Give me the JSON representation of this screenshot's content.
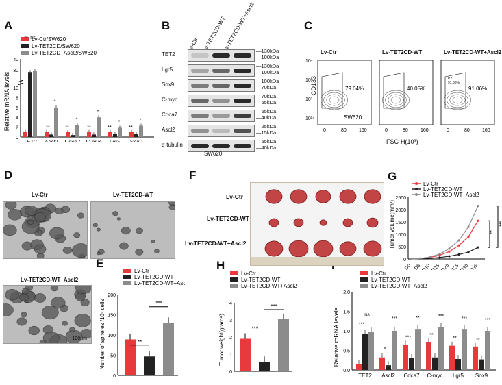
{
  "figure": {
    "panel_labels": [
      "A",
      "B",
      "C",
      "D",
      "E",
      "F",
      "G",
      "H",
      "I"
    ],
    "colors": {
      "ctr": "#e8393d",
      "wt": "#222222",
      "asc": "#8c8c8c"
    }
  },
  "panelA": {
    "legend": [
      "Lv-Ctr/SW620",
      "Lv-TET2CD/SW620",
      "Lv-TET2CD+Ascl2/SW620"
    ],
    "ylabel": "Relative mRNA levels"
  },
  "panelB": {
    "lanes": [
      "Lv-Ctr",
      "Lv-TET2CD-WT",
      "Lv-TET2CD-WT+Ascl2"
    ],
    "proteins": [
      "TET2",
      "Lgr5",
      "Sox9",
      "C-myc",
      "Cdca7",
      "Ascl2",
      "α-tubulin"
    ],
    "kda_left_top": [
      "130kDa",
      "100kDa",
      "100kDa",
      "70kDa",
      "55kDa",
      "55kDa",
      "25kDa",
      "55kDa"
    ],
    "kda_right": [
      [
        "130kDa",
        "100kDa"
      ],
      [
        "130kDa",
        "100kDa"
      ],
      [
        "100kDa",
        "70kDa"
      ],
      [
        "70kDa",
        "55kDa"
      ],
      [
        "55kDa",
        "40kDa"
      ],
      [
        "25kDa",
        "15kDa"
      ],
      [
        "55kDa",
        "40kDa"
      ]
    ],
    "cell_line": "SW620"
  },
  "panelC": {
    "titles": [
      "Lv-Ctr",
      "Lv-TET2CD-WT",
      "Lv-TET2CD-WT+Ascl2"
    ],
    "percents": [
      "79.04%",
      "40.05%",
      "91.06%"
    ],
    "ylabel": "CD133",
    "xlabel": "FSC-H(10³)",
    "xticks": [
      "0",
      "80",
      "160"
    ],
    "yticks": [
      "10⁴",
      "10³",
      "10²",
      "10¹⁴"
    ],
    "cell_line": "SW620",
    "gate_label": "P2",
    "gate_value": "91.06%"
  },
  "panelD": {
    "titles": [
      "Lv-Ctr",
      "Lv-TET2CD-WT",
      "Lv-TET2CD-WT+Ascl2"
    ],
    "scale": "100μm"
  },
  "panelE": {
    "legend": [
      "Lv-Ctr",
      "Lv-TET2CD-WT",
      "Lv-TET2CD-WT+Ascl2"
    ],
    "ylabel": "Number of spheres /10⁴ cells",
    "yticks": [
      "0",
      "50",
      "100",
      "150",
      "200"
    ],
    "sig": [
      "**",
      "***"
    ]
  },
  "panelF": {
    "rows": [
      "Lv-Ctr",
      "Lv-TET2CD-WT",
      "Lv-TET2CD-WT+Ascl2"
    ]
  },
  "panelG": {
    "legend": [
      "Lv-Ctr",
      "Lv-TET2CD-WT",
      "Lv-TET2CD-WT+Ascl2"
    ],
    "ylabel": "Tumor volume(mm³)",
    "yticks": [
      "0",
      "500",
      "1000",
      "1500",
      "2000",
      "2500"
    ],
    "xticks": [
      "D0",
      "D5",
      "D10",
      "D15",
      "D20",
      "D25",
      "D30",
      "D35"
    ],
    "sig": [
      "**",
      "***"
    ]
  },
  "panelH": {
    "legend": [
      "Lv-Ctr",
      "Lv-TET2CD-WT",
      "Lv-TET2CD-WT+Ascl2"
    ],
    "ylabel": "Tumor weight(grams)",
    "yticks": [
      "0",
      "1",
      "2",
      "3",
      "4"
    ],
    "sig": [
      "***",
      "***"
    ]
  },
  "panelI": {
    "legend": [
      "Lv-Ctr",
      "Lv-TET2CD-WT",
      "Lv-TET2CD-WT+Ascl2"
    ],
    "ylabel": "Relative mRNA levels",
    "yticks": [
      "0.0",
      "0.5",
      "1.0",
      "1.5",
      "2.0"
    ]
  },
  "chart_data": [
    {
      "type": "bar",
      "panel": "A",
      "categories": [
        "TET2",
        "Ascl2",
        "Cdca7",
        "C-myc",
        "Lgr5",
        "Sox9"
      ],
      "series": [
        {
          "name": "Lv-Ctr/SW620",
          "values": [
            1,
            1,
            1,
            1,
            1,
            1
          ]
        },
        {
          "name": "Lv-TET2CD/SW620",
          "values": [
            28,
            0.5,
            0.4,
            0.5,
            0.6,
            0.6
          ]
        },
        {
          "name": "Lv-TET2CD+Ascl2/SW620",
          "values": [
            29,
            6,
            2.4,
            4,
            1.9,
            2.3
          ]
        }
      ],
      "yticks": [
        "0",
        "2",
        "4",
        "6",
        "8",
        "10",
        "30",
        "40"
      ],
      "sig": [
        "**",
        "ns",
        "**",
        "*",
        "**",
        "*",
        "**",
        "*",
        "**",
        "*",
        "**",
        "*",
        "**"
      ],
      "ylabel": "Relative mRNA levels"
    },
    {
      "type": "bar",
      "panel": "E",
      "categories": [
        "Lv-Ctr",
        "Lv-TET2CD-WT",
        "Lv-TET2CD-WT+Ascl2"
      ],
      "values": [
        89,
        47,
        130
      ],
      "ylim": [
        0,
        200
      ],
      "ylabel": "Number of spheres /10⁴ cells"
    },
    {
      "type": "line",
      "panel": "G",
      "x": [
        "D0",
        "D5",
        "D10",
        "D15",
        "D20",
        "D25",
        "D30",
        "D35"
      ],
      "series": [
        {
          "name": "Lv-Ctr",
          "values": [
            0,
            20,
            60,
            150,
            300,
            550,
            900,
            1550
          ]
        },
        {
          "name": "Lv-TET2CD-WT",
          "values": [
            0,
            10,
            30,
            60,
            110,
            180,
            280,
            470
          ]
        },
        {
          "name": "Lv-TET2CD-WT+Ascl2",
          "values": [
            0,
            20,
            80,
            200,
            420,
            750,
            1300,
            2150
          ]
        }
      ],
      "ylim": [
        0,
        2500
      ],
      "ylabel": "Tumor volume(mm³)"
    },
    {
      "type": "bar",
      "panel": "H",
      "categories": [
        "Lv-Ctr",
        "Lv-TET2CD-WT",
        "Lv-TET2CD-WT+Ascl2"
      ],
      "values": [
        1.9,
        0.55,
        3.05
      ],
      "ylim": [
        0,
        4
      ],
      "ylabel": "Tumor weight(grams)"
    },
    {
      "type": "bar",
      "panel": "I",
      "categories": [
        "TET2",
        "Ascl2",
        "Cdca7",
        "C-myc",
        "Lgr5",
        "Sox9"
      ],
      "series": [
        {
          "name": "Lv-Ctr",
          "values": [
            0.15,
            0.32,
            0.65,
            0.72,
            0.62,
            0.6
          ]
        },
        {
          "name": "Lv-TET2CD-WT",
          "values": [
            0.93,
            0.12,
            0.3,
            0.32,
            0.28,
            0.27
          ]
        },
        {
          "name": "Lv-TET2CD-WT+Ascl2",
          "values": [
            0.98,
            1.0,
            1.05,
            1.1,
            1.05,
            1.0
          ]
        }
      ],
      "sig": [
        "***",
        "ns",
        "*",
        "***",
        "***",
        "**",
        "**",
        "***",
        "**",
        "***",
        "**",
        "***",
        "***"
      ],
      "ylim": [
        0,
        2
      ],
      "ylabel": "Relative mRNA levels"
    }
  ]
}
